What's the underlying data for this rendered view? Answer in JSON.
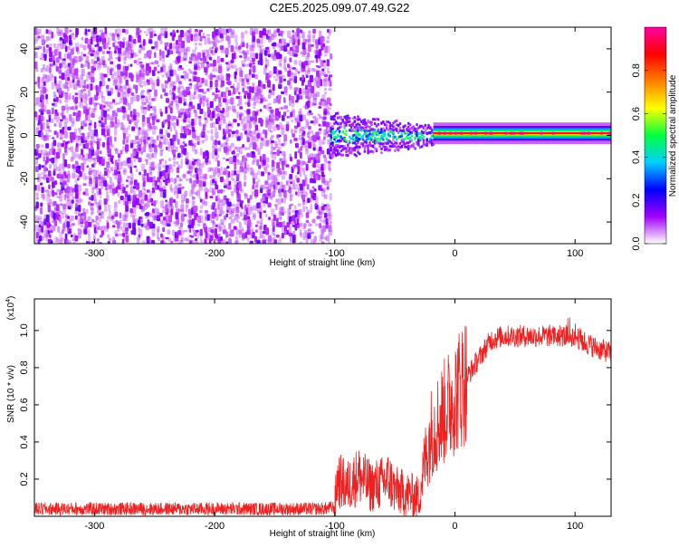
{
  "title": "C2E5.2025.099.07.49.G22",
  "chart_data": [
    {
      "type": "heatmap",
      "xlabel": "Height of straight line (km)",
      "ylabel": "Frequency (Hz)",
      "xlim": [
        -350,
        130
      ],
      "ylim": [
        -50,
        50
      ],
      "x_ticks": [
        -300,
        -200,
        -100,
        0,
        100
      ],
      "y_ticks": [
        -40,
        -20,
        0,
        20,
        40
      ],
      "colorbar": {
        "label": "Normalized spectral amplitude",
        "range": [
          0,
          1
        ],
        "ticks": [
          0,
          0.2,
          0.4,
          0.6,
          0.8
        ],
        "tick_labels": [
          "0.0",
          "0.2",
          "0.4",
          "0.6",
          "0.8"
        ],
        "colors": [
          "#ffffff",
          "#a000ff",
          "#0000ff",
          "#00d0ff",
          "#00ff40",
          "#ffff00",
          "#ff8000",
          "#ff0000",
          "#ff00a0"
        ]
      },
      "features": [
        {
          "region": "noise",
          "x_range": [
            -350,
            -104
          ],
          "f_range": [
            -50,
            48
          ],
          "amplitude": 0.1
        },
        {
          "region": "transition",
          "x_range": [
            -104,
            -18
          ],
          "f_center": 0,
          "f_halfwidth": 10,
          "amplitude": 0.35
        },
        {
          "region": "carrier",
          "x_range": [
            -18,
            130
          ],
          "f_center": 1,
          "f_halfwidth": 2,
          "amplitude": 0.9
        }
      ]
    },
    {
      "type": "line",
      "xlabel": "Height of straight line (km)",
      "ylabel": "SNR (10 * v/v)",
      "y_scale_label": "(x10",
      "y_scale_exponent": "4",
      "y_scale_suffix": ")",
      "xlim": [
        -350,
        130
      ],
      "ylim": [
        0,
        1.17
      ],
      "x_ticks": [
        -300,
        -200,
        -100,
        0,
        100
      ],
      "y_ticks": [
        0.2,
        0.4,
        0.6,
        0.8,
        1.0
      ],
      "y_tick_labels": [
        "0.2",
        "0.4",
        "0.6",
        "0.8",
        "1.0"
      ],
      "series_color": "#ee2020",
      "series": [
        {
          "x": [
            -350,
            -300,
            -250,
            -200,
            -150,
            -110,
            -100,
            -98,
            -90,
            -80,
            -70,
            -60,
            -55,
            -50,
            -40,
            -30,
            -25,
            -20,
            -15,
            -10,
            -5,
            0,
            10,
            20,
            30,
            40,
            60,
            80,
            90,
            100,
            110,
            120,
            130
          ],
          "values": [
            0.04,
            0.04,
            0.04,
            0.04,
            0.04,
            0.04,
            0.05,
            0.2,
            0.16,
            0.22,
            0.16,
            0.18,
            0.2,
            0.14,
            0.12,
            0.1,
            0.3,
            0.45,
            0.5,
            0.55,
            0.6,
            0.65,
            0.75,
            0.85,
            0.95,
            0.97,
            0.97,
            0.97,
            0.97,
            0.97,
            0.93,
            0.9,
            0.88
          ]
        }
      ]
    }
  ]
}
